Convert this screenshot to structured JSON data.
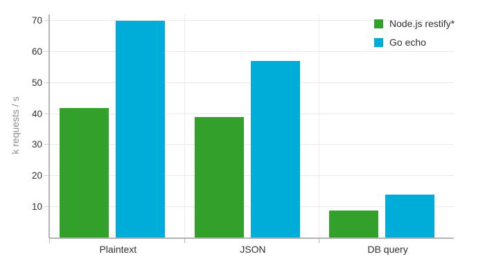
{
  "chart_data": {
    "type": "bar",
    "title": "",
    "categories": [
      "Plaintext",
      "JSON",
      "DB query"
    ],
    "series": [
      {
        "name": "Node.js restify*",
        "color": "#33a02c",
        "values": [
          42,
          39,
          9
        ]
      },
      {
        "name": "Go echo",
        "color": "#00add8",
        "values": [
          70,
          57,
          14
        ]
      }
    ],
    "xlabel": "",
    "ylabel": "k requests / s",
    "ylim": [
      0,
      72
    ],
    "yticks": [
      10,
      20,
      30,
      40,
      50,
      60,
      70
    ],
    "grid": true,
    "legend_position": "top-right"
  },
  "colors": {
    "background": "#ffffff",
    "axis_line": "#b3b3b3",
    "h_gridline": "#e9e9e9",
    "v_gridline": "#ececec",
    "tick_mark": "#cfcfcf",
    "tick_label_text": "#2f2f2f",
    "axis_title_text": "#8c8c8c",
    "legend_text": "#2f2f2f"
  }
}
